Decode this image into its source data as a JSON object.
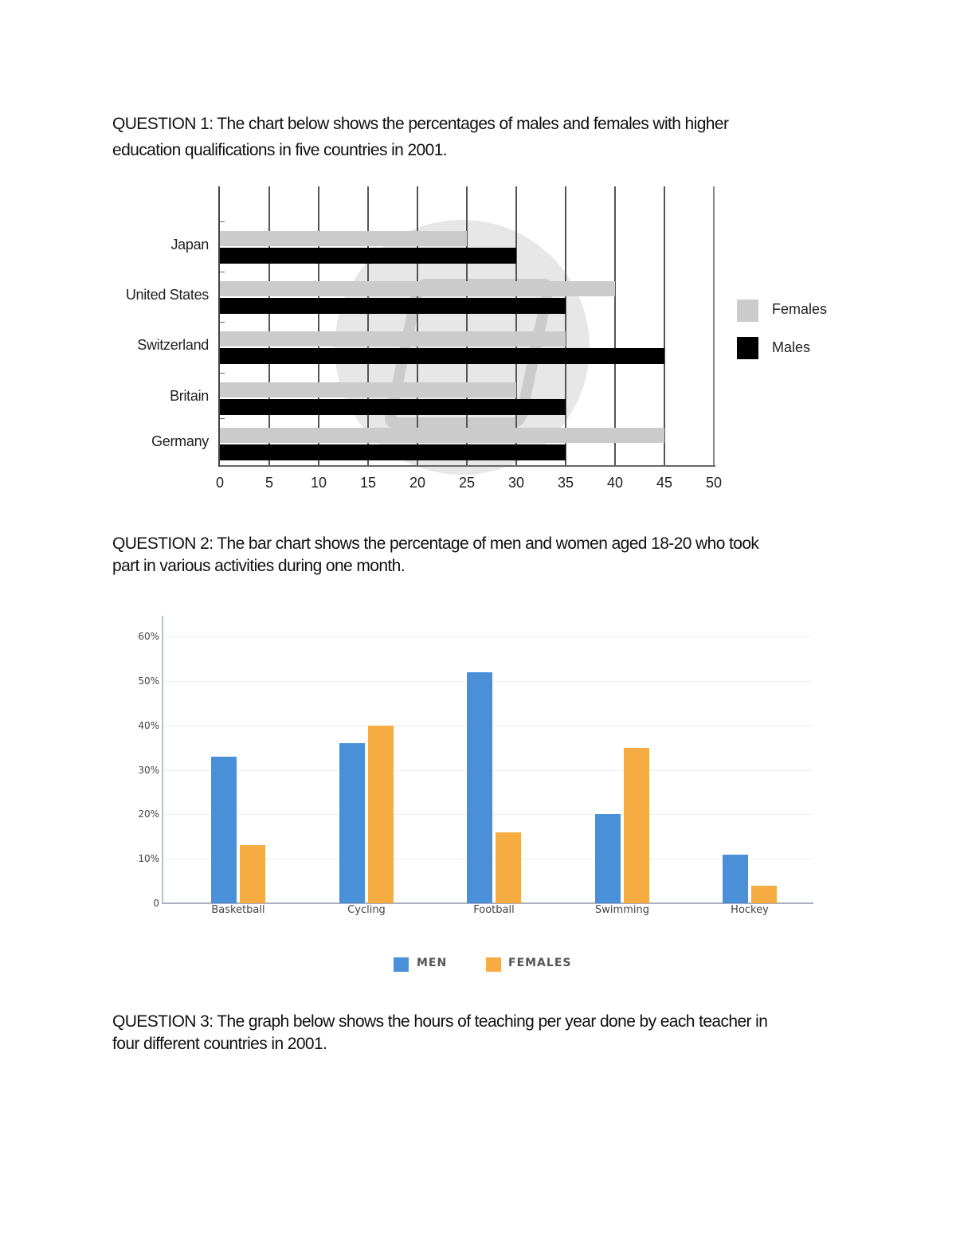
{
  "questions": [
    {
      "label": "QUESTION 1:",
      "text": "The chart below shows the percentages of males and females with higher",
      "text_line2": "education qualifications in five countries in 2001."
    },
    {
      "label": "QUESTION 2:",
      "text": "The bar chart shows the percentage of men and women aged 18-20 who took",
      "text_line2": "part in various activities during one month."
    },
    {
      "label": "QUESTION 3:",
      "text": "The graph below shows the hours of teaching per year done by each teacher in",
      "text_line2": "four different countries in 2001."
    }
  ],
  "colors": {
    "females_q1": "#cbcbcb",
    "males_q1": "#000000",
    "men_q2": "#4a90d9",
    "females_q2": "#f5ac42"
  },
  "chart_data": [
    {
      "type": "bar",
      "orientation": "horizontal",
      "title": "",
      "categories": [
        "Japan",
        "United States",
        "Switzerland",
        "Britain",
        "Germany"
      ],
      "series": [
        {
          "name": "Females",
          "values": [
            25,
            40,
            35,
            30,
            45
          ]
        },
        {
          "name": "Males",
          "values": [
            30,
            35,
            45,
            35,
            35
          ]
        }
      ],
      "xlabel": "",
      "ylabel": "",
      "xlim": [
        0,
        50
      ],
      "x_ticks": [
        "0",
        "5",
        "10",
        "15",
        "20",
        "25",
        "30",
        "35",
        "40",
        "45",
        "50"
      ],
      "grid": true,
      "legend": [
        "Females",
        "Males"
      ],
      "legend_position": "right"
    },
    {
      "type": "bar",
      "orientation": "vertical",
      "title": "",
      "categories": [
        "Basketball",
        "Cycling",
        "Football",
        "Swimming",
        "Hockey"
      ],
      "series": [
        {
          "name": "MEN",
          "values": [
            33,
            36,
            52,
            20,
            11
          ]
        },
        {
          "name": "FEMALES",
          "values": [
            13,
            40,
            16,
            35,
            4
          ]
        }
      ],
      "xlabel": "",
      "ylabel": "",
      "ylim": [
        0,
        60
      ],
      "y_ticks": [
        "0",
        "10%",
        "20%",
        "30%",
        "40%",
        "50%",
        "60%"
      ],
      "grid": true,
      "legend": [
        "MEN",
        "FEMALES"
      ],
      "legend_position": "bottom"
    }
  ]
}
